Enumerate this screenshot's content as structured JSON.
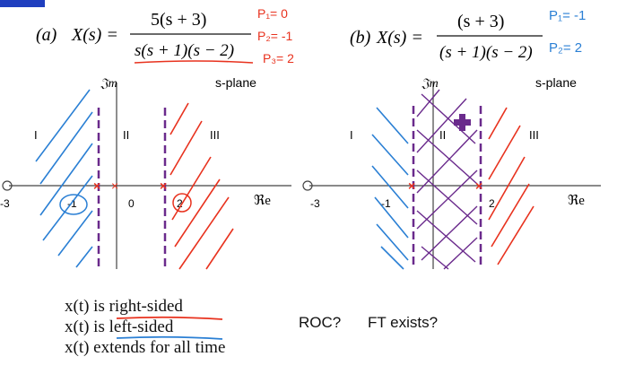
{
  "slide_corner_color": "#1f3fbf",
  "part_a": {
    "label": "(a)",
    "lhs": "X(s) =",
    "numerator": "5(s + 3)",
    "denominator": "s(s + 1)(s − 2)",
    "handwritten_poles": [
      "P₁= 0",
      "P₂= -1",
      "P₃= 2"
    ],
    "im_label": "𝔍m",
    "re_label": "ℜe",
    "plane_label": "s-plane",
    "regions": [
      "I",
      "II",
      "III"
    ],
    "tick_labels": [
      "-3",
      "-1",
      "0",
      "2"
    ]
  },
  "part_b": {
    "label": "(b)",
    "lhs": "X(s) =",
    "numerator": "(s + 3)",
    "denominator": "(s + 1)(s − 2)",
    "handwritten_poles": [
      "P₁= -1",
      "P₂= 2"
    ],
    "im_label": "𝔍m",
    "re_label": "ℜe",
    "plane_label": "s-plane",
    "regions": [
      "I",
      "II",
      "III"
    ],
    "tick_labels": [
      "-3",
      "-1",
      "2"
    ]
  },
  "statements": [
    {
      "prefix": "x(t) is ",
      "key": "right-sided"
    },
    {
      "prefix": "x(t) is ",
      "key": "left-sided"
    },
    {
      "prefix": "x(t) extends for all time",
      "key": ""
    }
  ],
  "questions": [
    "ROC?",
    "FT exists?"
  ],
  "colors": {
    "blue": "#2a7fd4",
    "red": "#e8321e",
    "purple": "#6a2a8c",
    "axis": "#444444"
  }
}
